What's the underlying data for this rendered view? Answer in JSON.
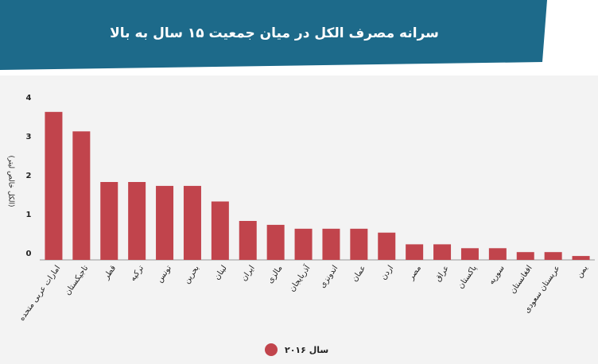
{
  "chart_data": {
    "type": "bar",
    "title": "سرانه مصرف الکل در میان جمعیت ۱۵ سال به بالا",
    "y_label": "(الکل خالص لیتر)",
    "categories": [
      "امارات عربی متحده",
      "تاجیکستان",
      "قطر",
      "ترکیه",
      "تونس",
      "بحرین",
      "لبنان",
      "ایران",
      "مالزی",
      "آذربایجان",
      "اندونزی",
      "عمان",
      "اردن",
      "مصر",
      "عراق",
      "پاکستان",
      "سوریه",
      "افغانستان",
      "عربستان سعودی",
      "یمن"
    ],
    "series": [
      {
        "name": "سال ۲۰۱۶",
        "color": "#c1444c",
        "values": [
          3.8,
          3.3,
          2.0,
          2.0,
          1.9,
          1.9,
          1.5,
          1.0,
          0.9,
          0.8,
          0.8,
          0.8,
          0.7,
          0.4,
          0.4,
          0.3,
          0.3,
          0.2,
          0.2,
          0.1
        ]
      }
    ],
    "ylim": [
      0,
      4
    ],
    "yticks": [
      0,
      1,
      2,
      3,
      4
    ],
    "grid": false
  }
}
